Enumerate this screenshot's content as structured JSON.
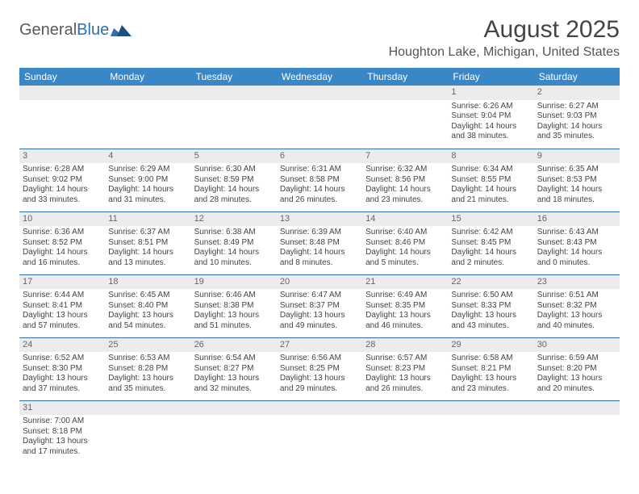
{
  "brand": {
    "name_a": "General",
    "name_b": "Blue"
  },
  "title": "August 2025",
  "location": "Houghton Lake, Michigan, United States",
  "colors": {
    "header_bg": "#3a87c8",
    "header_text": "#ffffff",
    "border": "#2f6fb0",
    "daynum_bg": "#ececec",
    "text": "#444444",
    "brand_blue": "#2f6fb0"
  },
  "weekdays": [
    "Sunday",
    "Monday",
    "Tuesday",
    "Wednesday",
    "Thursday",
    "Friday",
    "Saturday"
  ],
  "weeks": [
    [
      null,
      null,
      null,
      null,
      null,
      {
        "n": "1",
        "sr": "Sunrise: 6:26 AM",
        "ss": "Sunset: 9:04 PM",
        "d1": "Daylight: 14 hours",
        "d2": "and 38 minutes."
      },
      {
        "n": "2",
        "sr": "Sunrise: 6:27 AM",
        "ss": "Sunset: 9:03 PM",
        "d1": "Daylight: 14 hours",
        "d2": "and 35 minutes."
      }
    ],
    [
      {
        "n": "3",
        "sr": "Sunrise: 6:28 AM",
        "ss": "Sunset: 9:02 PM",
        "d1": "Daylight: 14 hours",
        "d2": "and 33 minutes."
      },
      {
        "n": "4",
        "sr": "Sunrise: 6:29 AM",
        "ss": "Sunset: 9:00 PM",
        "d1": "Daylight: 14 hours",
        "d2": "and 31 minutes."
      },
      {
        "n": "5",
        "sr": "Sunrise: 6:30 AM",
        "ss": "Sunset: 8:59 PM",
        "d1": "Daylight: 14 hours",
        "d2": "and 28 minutes."
      },
      {
        "n": "6",
        "sr": "Sunrise: 6:31 AM",
        "ss": "Sunset: 8:58 PM",
        "d1": "Daylight: 14 hours",
        "d2": "and 26 minutes."
      },
      {
        "n": "7",
        "sr": "Sunrise: 6:32 AM",
        "ss": "Sunset: 8:56 PM",
        "d1": "Daylight: 14 hours",
        "d2": "and 23 minutes."
      },
      {
        "n": "8",
        "sr": "Sunrise: 6:34 AM",
        "ss": "Sunset: 8:55 PM",
        "d1": "Daylight: 14 hours",
        "d2": "and 21 minutes."
      },
      {
        "n": "9",
        "sr": "Sunrise: 6:35 AM",
        "ss": "Sunset: 8:53 PM",
        "d1": "Daylight: 14 hours",
        "d2": "and 18 minutes."
      }
    ],
    [
      {
        "n": "10",
        "sr": "Sunrise: 6:36 AM",
        "ss": "Sunset: 8:52 PM",
        "d1": "Daylight: 14 hours",
        "d2": "and 16 minutes."
      },
      {
        "n": "11",
        "sr": "Sunrise: 6:37 AM",
        "ss": "Sunset: 8:51 PM",
        "d1": "Daylight: 14 hours",
        "d2": "and 13 minutes."
      },
      {
        "n": "12",
        "sr": "Sunrise: 6:38 AM",
        "ss": "Sunset: 8:49 PM",
        "d1": "Daylight: 14 hours",
        "d2": "and 10 minutes."
      },
      {
        "n": "13",
        "sr": "Sunrise: 6:39 AM",
        "ss": "Sunset: 8:48 PM",
        "d1": "Daylight: 14 hours",
        "d2": "and 8 minutes."
      },
      {
        "n": "14",
        "sr": "Sunrise: 6:40 AM",
        "ss": "Sunset: 8:46 PM",
        "d1": "Daylight: 14 hours",
        "d2": "and 5 minutes."
      },
      {
        "n": "15",
        "sr": "Sunrise: 6:42 AM",
        "ss": "Sunset: 8:45 PM",
        "d1": "Daylight: 14 hours",
        "d2": "and 2 minutes."
      },
      {
        "n": "16",
        "sr": "Sunrise: 6:43 AM",
        "ss": "Sunset: 8:43 PM",
        "d1": "Daylight: 14 hours",
        "d2": "and 0 minutes."
      }
    ],
    [
      {
        "n": "17",
        "sr": "Sunrise: 6:44 AM",
        "ss": "Sunset: 8:41 PM",
        "d1": "Daylight: 13 hours",
        "d2": "and 57 minutes."
      },
      {
        "n": "18",
        "sr": "Sunrise: 6:45 AM",
        "ss": "Sunset: 8:40 PM",
        "d1": "Daylight: 13 hours",
        "d2": "and 54 minutes."
      },
      {
        "n": "19",
        "sr": "Sunrise: 6:46 AM",
        "ss": "Sunset: 8:38 PM",
        "d1": "Daylight: 13 hours",
        "d2": "and 51 minutes."
      },
      {
        "n": "20",
        "sr": "Sunrise: 6:47 AM",
        "ss": "Sunset: 8:37 PM",
        "d1": "Daylight: 13 hours",
        "d2": "and 49 minutes."
      },
      {
        "n": "21",
        "sr": "Sunrise: 6:49 AM",
        "ss": "Sunset: 8:35 PM",
        "d1": "Daylight: 13 hours",
        "d2": "and 46 minutes."
      },
      {
        "n": "22",
        "sr": "Sunrise: 6:50 AM",
        "ss": "Sunset: 8:33 PM",
        "d1": "Daylight: 13 hours",
        "d2": "and 43 minutes."
      },
      {
        "n": "23",
        "sr": "Sunrise: 6:51 AM",
        "ss": "Sunset: 8:32 PM",
        "d1": "Daylight: 13 hours",
        "d2": "and 40 minutes."
      }
    ],
    [
      {
        "n": "24",
        "sr": "Sunrise: 6:52 AM",
        "ss": "Sunset: 8:30 PM",
        "d1": "Daylight: 13 hours",
        "d2": "and 37 minutes."
      },
      {
        "n": "25",
        "sr": "Sunrise: 6:53 AM",
        "ss": "Sunset: 8:28 PM",
        "d1": "Daylight: 13 hours",
        "d2": "and 35 minutes."
      },
      {
        "n": "26",
        "sr": "Sunrise: 6:54 AM",
        "ss": "Sunset: 8:27 PM",
        "d1": "Daylight: 13 hours",
        "d2": "and 32 minutes."
      },
      {
        "n": "27",
        "sr": "Sunrise: 6:56 AM",
        "ss": "Sunset: 8:25 PM",
        "d1": "Daylight: 13 hours",
        "d2": "and 29 minutes."
      },
      {
        "n": "28",
        "sr": "Sunrise: 6:57 AM",
        "ss": "Sunset: 8:23 PM",
        "d1": "Daylight: 13 hours",
        "d2": "and 26 minutes."
      },
      {
        "n": "29",
        "sr": "Sunrise: 6:58 AM",
        "ss": "Sunset: 8:21 PM",
        "d1": "Daylight: 13 hours",
        "d2": "and 23 minutes."
      },
      {
        "n": "30",
        "sr": "Sunrise: 6:59 AM",
        "ss": "Sunset: 8:20 PM",
        "d1": "Daylight: 13 hours",
        "d2": "and 20 minutes."
      }
    ],
    [
      {
        "n": "31",
        "sr": "Sunrise: 7:00 AM",
        "ss": "Sunset: 8:18 PM",
        "d1": "Daylight: 13 hours",
        "d2": "and 17 minutes."
      },
      null,
      null,
      null,
      null,
      null,
      null
    ]
  ]
}
